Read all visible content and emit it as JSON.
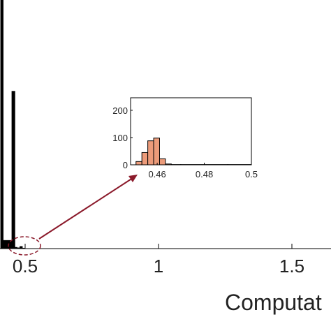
{
  "chart_data": [
    {
      "type": "histogram",
      "xlabel": "Computat",
      "bins": [
        0.408,
        0.418,
        0.45,
        0.462,
        0.47,
        0.48,
        0.49,
        0.5
      ],
      "values": [
        900,
        30,
        570,
        5,
        3,
        8,
        2
      ],
      "color": "#000000",
      "xlim": [
        0.4058,
        1.6466
      ],
      "xticks": [
        0.5,
        1,
        1.5
      ],
      "ylim": [
        0,
        900
      ]
    },
    {
      "type": "histogram",
      "bins": [
        0.451,
        0.4535,
        0.456,
        0.4585,
        0.461,
        0.4635,
        0.466,
        0.47,
        0.48,
        0.49,
        0.5
      ],
      "values": [
        12,
        45,
        88,
        98,
        22,
        3,
        1,
        1,
        1,
        1
      ],
      "color": "#ec9b7a",
      "xlim": [
        0.4487,
        0.5
      ],
      "xticks": [
        0.46,
        0.48,
        0.5
      ],
      "ylim": [
        0,
        246
      ],
      "yticks": [
        0,
        100,
        200
      ]
    }
  ]
}
